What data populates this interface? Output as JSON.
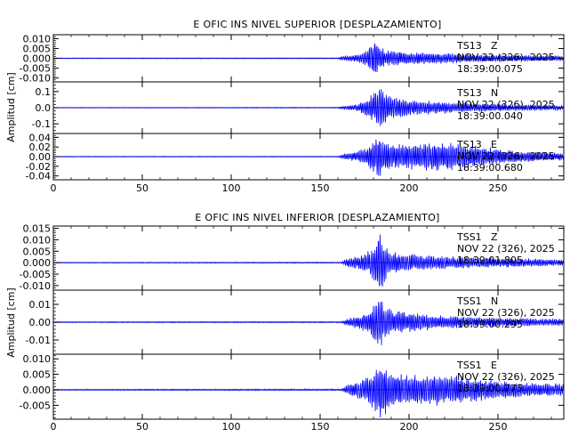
{
  "chart_data": [
    {
      "type": "line",
      "title": "E OFIC INS NIVEL SUPERIOR [DESPLAZAMIENTO]",
      "ylabel": "Amplitud [cm]",
      "xlabel": "",
      "xlim": [
        0,
        287
      ],
      "xticks": [
        0,
        50,
        100,
        150,
        200,
        250
      ],
      "x_tick_labels": [
        "0",
        "50",
        "100",
        "150",
        "200",
        "250"
      ],
      "trace_color": "#0000ff",
      "traces": [
        {
          "station": "TS13",
          "component": "Z",
          "date": "NOV 22 (326), 2025",
          "time": "18:39:00.075",
          "ylim": [
            -0.012,
            0.012
          ],
          "yticks": [
            -0.01,
            -0.005,
            0.0,
            0.005,
            0.01
          ],
          "y_tick_labels": [
            "-0.010",
            "-0.005",
            "0.000",
            "0.005",
            "0.010"
          ],
          "envelope": {
            "x": [
              0,
              160,
              163,
              170,
              176,
              179,
              181,
              183,
              186,
              190,
              200,
              215,
              235,
              260,
              287
            ],
            "amplitude": [
              0.0002,
              0.0003,
              0.0012,
              0.002,
              0.004,
              0.009,
              0.0115,
              0.007,
              0.0045,
              0.004,
              0.0035,
              0.003,
              0.0022,
              0.0016,
              0.0012
            ]
          }
        },
        {
          "station": "TS13",
          "component": "N",
          "date": "NOV 22 (326), 2025",
          "time": "18:39:00.040",
          "ylim": [
            -0.16,
            0.16
          ],
          "yticks": [
            -0.1,
            0.0,
            0.1
          ],
          "y_tick_labels": [
            "-0.1",
            "0.0",
            "0.1"
          ],
          "envelope": {
            "x": [
              0,
              160,
              163,
              170,
              176,
              180,
              183,
              186,
              190,
              200,
              215,
              235,
              260,
              287
            ],
            "amplitude": [
              0.002,
              0.003,
              0.012,
              0.02,
              0.05,
              0.1,
              0.15,
              0.11,
              0.07,
              0.05,
              0.04,
              0.03,
              0.02,
              0.015
            ]
          }
        },
        {
          "station": "TS13",
          "component": "E",
          "date": "NOV 22 (326), 2025",
          "time": "18:39:00.680",
          "ylim": [
            -0.048,
            0.048
          ],
          "yticks": [
            -0.04,
            -0.02,
            0.0,
            0.02,
            0.04
          ],
          "y_tick_labels": [
            "-0.04",
            "-0.02",
            "0.00",
            "0.02",
            "0.04"
          ],
          "envelope": {
            "x": [
              0,
              160,
              163,
              170,
              176,
              180,
              183,
              186,
              190,
              200,
              215,
              230,
              245,
              260,
              287
            ],
            "amplitude": [
              0.0008,
              0.001,
              0.005,
              0.01,
              0.02,
              0.035,
              0.045,
              0.033,
              0.025,
              0.028,
              0.03,
              0.028,
              0.02,
              0.012,
              0.008
            ]
          }
        }
      ]
    },
    {
      "type": "line",
      "title": "E OFIC INS NIVEL INFERIOR [DESPLAZAMIENTO]",
      "ylabel": "Amplitud [cm]",
      "xlabel": "",
      "xlim": [
        0,
        287
      ],
      "xticks": [
        0,
        50,
        100,
        150,
        200,
        250
      ],
      "x_tick_labels": [
        "0",
        "50",
        "100",
        "150",
        "200",
        "250"
      ],
      "trace_color": "#0000ff",
      "traces": [
        {
          "station": "TSS1",
          "component": "Z",
          "date": "NOV 22 (326), 2025",
          "time": "18:39:01.805",
          "ylim": [
            -0.012,
            0.016
          ],
          "yticks": [
            -0.01,
            -0.005,
            0.0,
            0.005,
            0.01,
            0.015
          ],
          "y_tick_labels": [
            "-0.010",
            "-0.005",
            "0.000",
            "0.005",
            "0.010",
            "0.015"
          ],
          "envelope": {
            "x": [
              0,
              162,
              165,
              172,
              178,
              181,
              183,
              186,
              190,
              200,
              215,
              235,
              260,
              287
            ],
            "amplitude": [
              0.0002,
              0.0003,
              0.002,
              0.003,
              0.006,
              0.01,
              0.015,
              0.009,
              0.005,
              0.004,
              0.003,
              0.0025,
              0.002,
              0.0015
            ]
          }
        },
        {
          "station": "TSS1",
          "component": "N",
          "date": "NOV 22 (326), 2025",
          "time": "18:39:00.295",
          "ylim": [
            -0.018,
            0.018
          ],
          "yticks": [
            -0.01,
            0.0,
            0.01
          ],
          "y_tick_labels": [
            "-0.01",
            "0.00",
            "0.01"
          ],
          "envelope": {
            "x": [
              0,
              162,
              165,
              172,
              178,
              181,
              183,
              186,
              190,
              200,
              215,
              235,
              260,
              287
            ],
            "amplitude": [
              0.0003,
              0.0004,
              0.002,
              0.004,
              0.008,
              0.012,
              0.016,
              0.01,
              0.007,
              0.006,
              0.004,
              0.003,
              0.0025,
              0.002
            ]
          }
        },
        {
          "station": "TSS1",
          "component": "E",
          "date": "NOV 22 (326), 2025",
          "time": "18:39:00.775",
          "ylim": [
            -0.0095,
            0.0115
          ],
          "yticks": [
            -0.005,
            0.0,
            0.005,
            0.01
          ],
          "y_tick_labels": [
            "-0.005",
            "0.000",
            "0.005",
            "0.010"
          ],
          "envelope": {
            "x": [
              0,
              162,
              165,
              172,
              178,
              181,
              184,
              187,
              191,
              200,
              215,
              230,
              245,
              260,
              287
            ],
            "amplitude": [
              0.0002,
              0.0003,
              0.0015,
              0.003,
              0.005,
              0.008,
              0.0105,
              0.008,
              0.006,
              0.005,
              0.0055,
              0.0045,
              0.0035,
              0.0025,
              0.002
            ]
          }
        }
      ]
    }
  ]
}
